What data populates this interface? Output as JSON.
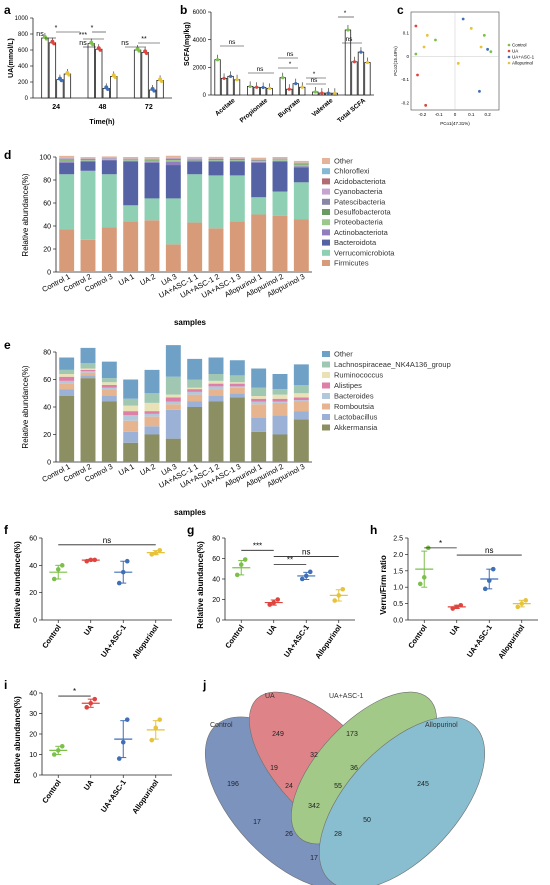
{
  "panel_labels": {
    "a": "a",
    "b": "b",
    "c": "c",
    "d": "d",
    "e": "e",
    "f": "f",
    "g": "g",
    "h": "h",
    "i": "i",
    "j": "j"
  },
  "groups": [
    "Control",
    "UA",
    "UA+ASC-1",
    "Allopurinol"
  ],
  "group_colors": {
    "Control": "#7cc04a",
    "UA": "#e0443e",
    "UA+ASC-1": "#3f6fb7",
    "Allopurinol": "#e6c33a"
  },
  "chart_data": [
    {
      "id": "a",
      "type": "bar",
      "ylabel": "UA(mmol/L)",
      "xlabel": "Time(h)",
      "categories": [
        "24",
        "48",
        "72"
      ],
      "ylim": [
        0,
        1000
      ],
      "yticks": [
        "0",
        "200",
        "400",
        "600",
        "800",
        "1000"
      ],
      "series": [
        {
          "name": "Control",
          "values": [
            750,
            680,
            600
          ]
        },
        {
          "name": "UA",
          "values": [
            690,
            610,
            570
          ]
        },
        {
          "name": "UA+ASC-1",
          "values": [
            230,
            120,
            100
          ]
        },
        {
          "name": "Allopurinol",
          "values": [
            300,
            270,
            220
          ]
        }
      ],
      "annotations": [
        "ns",
        "*",
        "ns",
        "***",
        "*",
        "ns",
        "**"
      ]
    },
    {
      "id": "b",
      "type": "bar",
      "ylabel": "SCFA(mg/kg)",
      "categories": [
        "Acetate",
        "Propionate",
        "Butyrate",
        "Valerate",
        "Total SCFA"
      ],
      "ylim": [
        0,
        6000
      ],
      "yticks": [
        "0",
        "2000",
        "4000",
        "6000"
      ],
      "series": [
        {
          "name": "Control",
          "values": [
            2550,
            620,
            1250,
            220,
            4700
          ]
        },
        {
          "name": "UA",
          "values": [
            1200,
            560,
            420,
            140,
            2400
          ]
        },
        {
          "name": "UA+ASC-1",
          "values": [
            1350,
            540,
            820,
            140,
            3100
          ]
        },
        {
          "name": "Allopurinol",
          "values": [
            1100,
            480,
            560,
            130,
            2350
          ]
        }
      ],
      "annotations": [
        "ns",
        "ns",
        "ns",
        "*",
        "*",
        "ns",
        "*",
        "ns"
      ]
    },
    {
      "id": "c",
      "type": "scatter",
      "xlabel": "PCo1(47.31%)",
      "ylabel": "PCo2(15.49%)",
      "xticks": [
        "-0.2",
        "-0.1",
        "0",
        "0.1",
        "0.2"
      ],
      "yticks": [
        "0.1",
        "0",
        "-0.1",
        "-0.2"
      ],
      "series": [
        {
          "name": "Control",
          "points": [
            [
              0.18,
              0.09
            ],
            [
              0.22,
              0.02
            ],
            [
              -0.24,
              0.01
            ],
            [
              -0.12,
              0.07
            ]
          ]
        },
        {
          "name": "UA",
          "points": [
            [
              -0.24,
              0.13
            ],
            [
              -0.23,
              -0.08
            ],
            [
              -0.18,
              -0.21
            ]
          ]
        },
        {
          "name": "UA+ASC-1",
          "points": [
            [
              0.05,
              0.16
            ],
            [
              0.2,
              0.03
            ],
            [
              0.15,
              -0.15
            ]
          ]
        },
        {
          "name": "Allopurinol",
          "points": [
            [
              -0.17,
              0.09
            ],
            [
              -0.19,
              0.04
            ],
            [
              0.1,
              0.12
            ],
            [
              0.02,
              -0.03
            ],
            [
              0.16,
              0.04
            ]
          ]
        }
      ]
    },
    {
      "id": "d",
      "type": "bar",
      "ylabel": "Relative abundance(%)",
      "xlabel": "samples",
      "stacked": true,
      "categories": [
        "Control 1",
        "Control 2",
        "Control 3",
        "UA 1",
        "UA 2",
        "UA 3",
        "UA+ASC-1 1",
        "UA+ASC-1 2",
        "UA+ASC-1 3",
        "Allopurinol 1",
        "Allopurinol 2",
        "Allopurinol 3"
      ],
      "ylim": [
        0,
        100
      ],
      "yticks": [
        "0",
        "20",
        "40",
        "60",
        "80",
        "100"
      ],
      "series": [
        {
          "name": "Firmicutes",
          "color": "#d79b7a",
          "values": [
            37,
            28,
            39,
            44,
            45,
            24,
            43,
            38,
            44,
            50,
            49,
            46
          ]
        },
        {
          "name": "Verrucomicrobiota",
          "color": "#8fd0b4",
          "values": [
            48,
            60,
            46,
            14,
            19,
            40,
            42,
            46,
            40,
            15,
            21,
            32
          ]
        },
        {
          "name": "Bacteroidota",
          "color": "#5562a4",
          "values": [
            10,
            8,
            12,
            38,
            31,
            29,
            11,
            12,
            12,
            30,
            26,
            13
          ]
        },
        {
          "name": "Actinobacteriota",
          "color": "#8f7fbf",
          "values": [
            1.2,
            0.8,
            0.5,
            0.8,
            1.0,
            3.0,
            1.0,
            0.8,
            0.8,
            0.8,
            0.7,
            1.0
          ]
        },
        {
          "name": "Proteobacteria",
          "color": "#9ac98a",
          "values": [
            0.8,
            0.6,
            0.5,
            0.5,
            1.0,
            1.2,
            0.6,
            0.6,
            0.6,
            0.7,
            0.5,
            1.5
          ]
        },
        {
          "name": "Desulfobacterota",
          "color": "#6c9a63",
          "values": [
            0.6,
            0.4,
            0.4,
            0.4,
            0.5,
            0.6,
            0.4,
            0.4,
            0.4,
            0.4,
            0.4,
            0.5
          ]
        },
        {
          "name": "Patescibacteria",
          "color": "#8a86a6",
          "values": [
            0.6,
            0.4,
            0.4,
            0.4,
            0.4,
            0.5,
            0.4,
            0.4,
            0.4,
            0.4,
            0.4,
            0.4
          ]
        },
        {
          "name": "Cyanobacteria",
          "color": "#c8a3cf",
          "values": [
            0.4,
            0.3,
            0.3,
            0.3,
            0.3,
            0.4,
            0.3,
            0.3,
            0.3,
            0.3,
            0.3,
            0.3
          ]
        },
        {
          "name": "Acidobacteriota",
          "color": "#b46a73",
          "values": [
            0.3,
            0.2,
            0.2,
            0.2,
            0.2,
            0.3,
            0.2,
            0.2,
            0.2,
            0.2,
            0.2,
            0.2
          ]
        },
        {
          "name": "Chloroflexi",
          "color": "#86b9d6",
          "values": [
            0.3,
            0.2,
            0.2,
            0.2,
            0.2,
            0.3,
            0.2,
            0.2,
            0.2,
            0.2,
            0.2,
            0.2
          ]
        },
        {
          "name": "Other",
          "color": "#e3b49a",
          "values": [
            1.8,
            1.0,
            1.0,
            1.2,
            1.4,
            1.8,
            1.0,
            1.2,
            1.0,
            1.4,
            1.3,
            1.5
          ]
        }
      ]
    },
    {
      "id": "e",
      "type": "bar",
      "ylabel": "Relative abundance(%)",
      "xlabel": "samples",
      "stacked": true,
      "categories": [
        "Control 1",
        "Control 2",
        "Control 3",
        "UA 1",
        "UA 2",
        "UA 3",
        "UA+ASC-1 1",
        "UA+ASC-1 2",
        "UA+ASC-1 3",
        "Allopurinol 1",
        "Allopurinol 2",
        "Allopurinol 3"
      ],
      "ylim": [
        0,
        80
      ],
      "yticks": [
        "0",
        "20",
        "40",
        "60",
        "80"
      ],
      "series": [
        {
          "name": "Akkermansia",
          "color": "#8c8f62",
          "values": [
            48,
            61,
            44,
            14,
            20,
            17,
            40,
            44,
            47,
            22,
            20,
            31
          ]
        },
        {
          "name": "Lactobacillus",
          "color": "#9bb2d6",
          "values": [
            5,
            2,
            4,
            8,
            6,
            21,
            4,
            4,
            3,
            10,
            14,
            6
          ]
        },
        {
          "name": "Romboutsia",
          "color": "#e6b48f",
          "values": [
            4,
            2,
            5,
            8,
            7,
            4,
            5,
            5,
            4,
            10,
            9,
            7
          ]
        },
        {
          "name": "Bacteroides",
          "color": "#b4c8dc",
          "values": [
            2,
            1,
            1,
            4,
            2,
            2,
            2,
            2,
            1,
            2,
            1,
            1
          ]
        },
        {
          "name": "Alistipes",
          "color": "#de7fa7",
          "values": [
            3,
            1,
            2,
            3,
            2,
            3,
            2,
            2,
            2,
            2,
            2,
            2
          ]
        },
        {
          "name": "Ruminococcus",
          "color": "#e9e2b6",
          "values": [
            2,
            1,
            2,
            4,
            6,
            2,
            1,
            2,
            1,
            2,
            3,
            3
          ]
        },
        {
          "name": "Lachnospiraceae_NK4A136_group",
          "color": "#9fc7b2",
          "values": [
            3,
            4,
            3,
            5,
            7,
            13,
            6,
            5,
            5,
            6,
            4,
            6
          ]
        },
        {
          "name": "Other",
          "color": "#6fa1c6",
          "values": [
            9,
            11,
            12,
            14,
            17,
            23,
            15,
            12,
            11,
            14,
            11,
            15
          ]
        }
      ]
    },
    {
      "id": "f",
      "type": "scatter",
      "ylabel": "Relative abundance(%)",
      "categories": [
        "Control",
        "UA",
        "UA+ASC-1",
        "Allopurinol"
      ],
      "ylim": [
        0,
        60
      ],
      "yticks": [
        "0",
        "20",
        "40",
        "60"
      ],
      "points": [
        [
          30,
          37,
          40
        ],
        [
          43,
          44,
          44
        ],
        [
          27,
          35,
          43
        ],
        [
          48,
          49,
          51
        ]
      ],
      "mean": [
        35,
        43.8,
        35,
        49.3
      ],
      "sd": [
        5,
        0.6,
        8,
        1.5
      ],
      "annotations": [
        "ns"
      ]
    },
    {
      "id": "g",
      "type": "scatter",
      "ylabel": "Relative abundance(%)",
      "categories": [
        "Control",
        "UA",
        "UA+ASC-1",
        "Allopurinol"
      ],
      "ylim": [
        0,
        80
      ],
      "yticks": [
        "0",
        "20",
        "40",
        "60",
        "80"
      ],
      "points": [
        [
          44,
          54,
          59
        ],
        [
          15,
          17,
          20
        ],
        [
          40,
          43,
          47
        ],
        [
          19,
          24,
          30
        ]
      ],
      "mean": [
        51,
        17,
        43,
        24
      ],
      "sd": [
        7,
        2.5,
        3.5,
        5.5
      ],
      "annotations": [
        "***",
        "**",
        "ns"
      ]
    },
    {
      "id": "h",
      "type": "scatter",
      "ylabel": "Verru/Firm ratio",
      "categories": [
        "Control",
        "UA",
        "UA+ASC-1",
        "Allopurinol"
      ],
      "ylim": [
        0,
        2.5
      ],
      "yticks": [
        "0.0",
        "0.5",
        "1.0",
        "1.5",
        "2.0",
        "2.5"
      ],
      "points": [
        [
          1.1,
          1.3,
          2.2
        ],
        [
          0.35,
          0.4,
          0.45
        ],
        [
          0.95,
          1.2,
          1.55
        ],
        [
          0.4,
          0.5,
          0.6
        ]
      ],
      "mean": [
        1.55,
        0.4,
        1.25,
        0.5
      ],
      "sd": [
        0.55,
        0.05,
        0.3,
        0.1
      ],
      "annotations": [
        "*",
        "ns"
      ]
    },
    {
      "id": "i",
      "type": "scatter",
      "ylabel": "Relative abundance(%)",
      "categories": [
        "Control",
        "UA",
        "UA+ASC-1",
        "Allopurinol"
      ],
      "ylim": [
        0,
        40
      ],
      "yticks": [
        "0",
        "10",
        "20",
        "30",
        "40"
      ],
      "points": [
        [
          10,
          12,
          14
        ],
        [
          33,
          35,
          37
        ],
        [
          8,
          16,
          27
        ],
        [
          17,
          23,
          27
        ]
      ],
      "mean": [
        12,
        35,
        17.5,
        22
      ],
      "sd": [
        2,
        2,
        9,
        4.5
      ],
      "annotations": [
        "*"
      ]
    }
  ],
  "venn": {
    "labels": [
      "Control",
      "UA",
      "UA+ASC-1",
      "Allopurinol"
    ],
    "colors": [
      "#4a6aa6",
      "#d2555d",
      "#7fb55b",
      "#5ba6bd"
    ],
    "counts": [
      "196",
      "249",
      "173",
      "245",
      "19",
      "32",
      "36",
      "24",
      "55",
      "342",
      "17",
      "26",
      "28",
      "50",
      "17"
    ]
  }
}
